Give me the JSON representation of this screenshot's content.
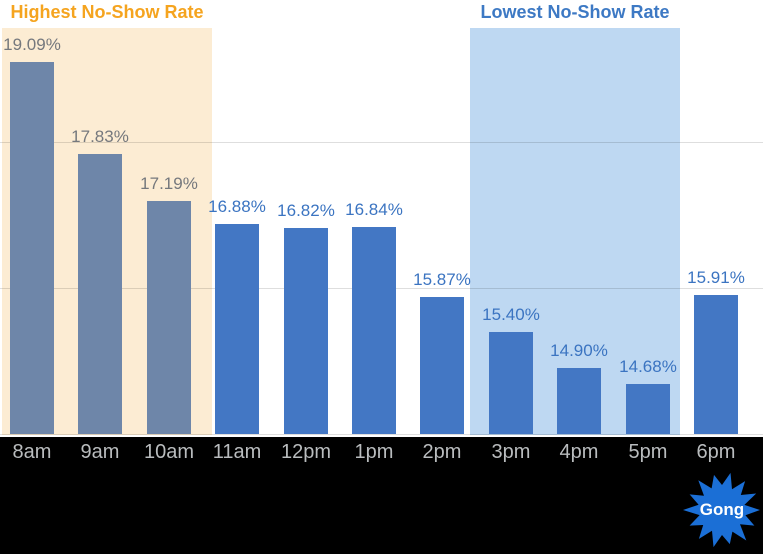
{
  "chart_data": {
    "type": "bar",
    "title": "",
    "xlabel": "",
    "ylabel": "",
    "categories": [
      "8am",
      "9am",
      "10am",
      "11am",
      "12pm",
      "1pm",
      "2pm",
      "3pm",
      "4pm",
      "5pm",
      "6pm"
    ],
    "values": [
      19.09,
      17.83,
      17.19,
      16.88,
      16.82,
      16.84,
      15.87,
      15.4,
      14.9,
      14.68,
      15.91
    ],
    "value_labels": [
      "19.09%",
      "17.83%",
      "17.19%",
      "16.88%",
      "16.82%",
      "16.84%",
      "15.87%",
      "15.40%",
      "14.90%",
      "14.68%",
      "15.91%"
    ],
    "ylim": [
      14,
      20
    ],
    "gridline_values": [
      18,
      16,
      14
    ],
    "grid": true,
    "legend_position": "none",
    "muted_count": 3,
    "colors": {
      "muted_bar": "#6E86A9",
      "muted_label": "#75787D",
      "primary_bar": "#4377C4",
      "primary_label": "#3B74C1"
    }
  },
  "annotations": {
    "highest": {
      "label": "Highest No-Show Rate",
      "text_color": "#F5A41F",
      "bg_color": "#FCECD3",
      "covers": "8am-10am"
    },
    "lowest": {
      "label": "Lowest No-Show Rate",
      "text_color": "#3D79C4",
      "bg_color": "#BED8F2",
      "covers": "3pm-5pm"
    }
  },
  "footer": {
    "brand": "Gong",
    "bg_color": "#000000",
    "label_color": "#B9BCBE",
    "logo_color": "#1B6FD6"
  }
}
